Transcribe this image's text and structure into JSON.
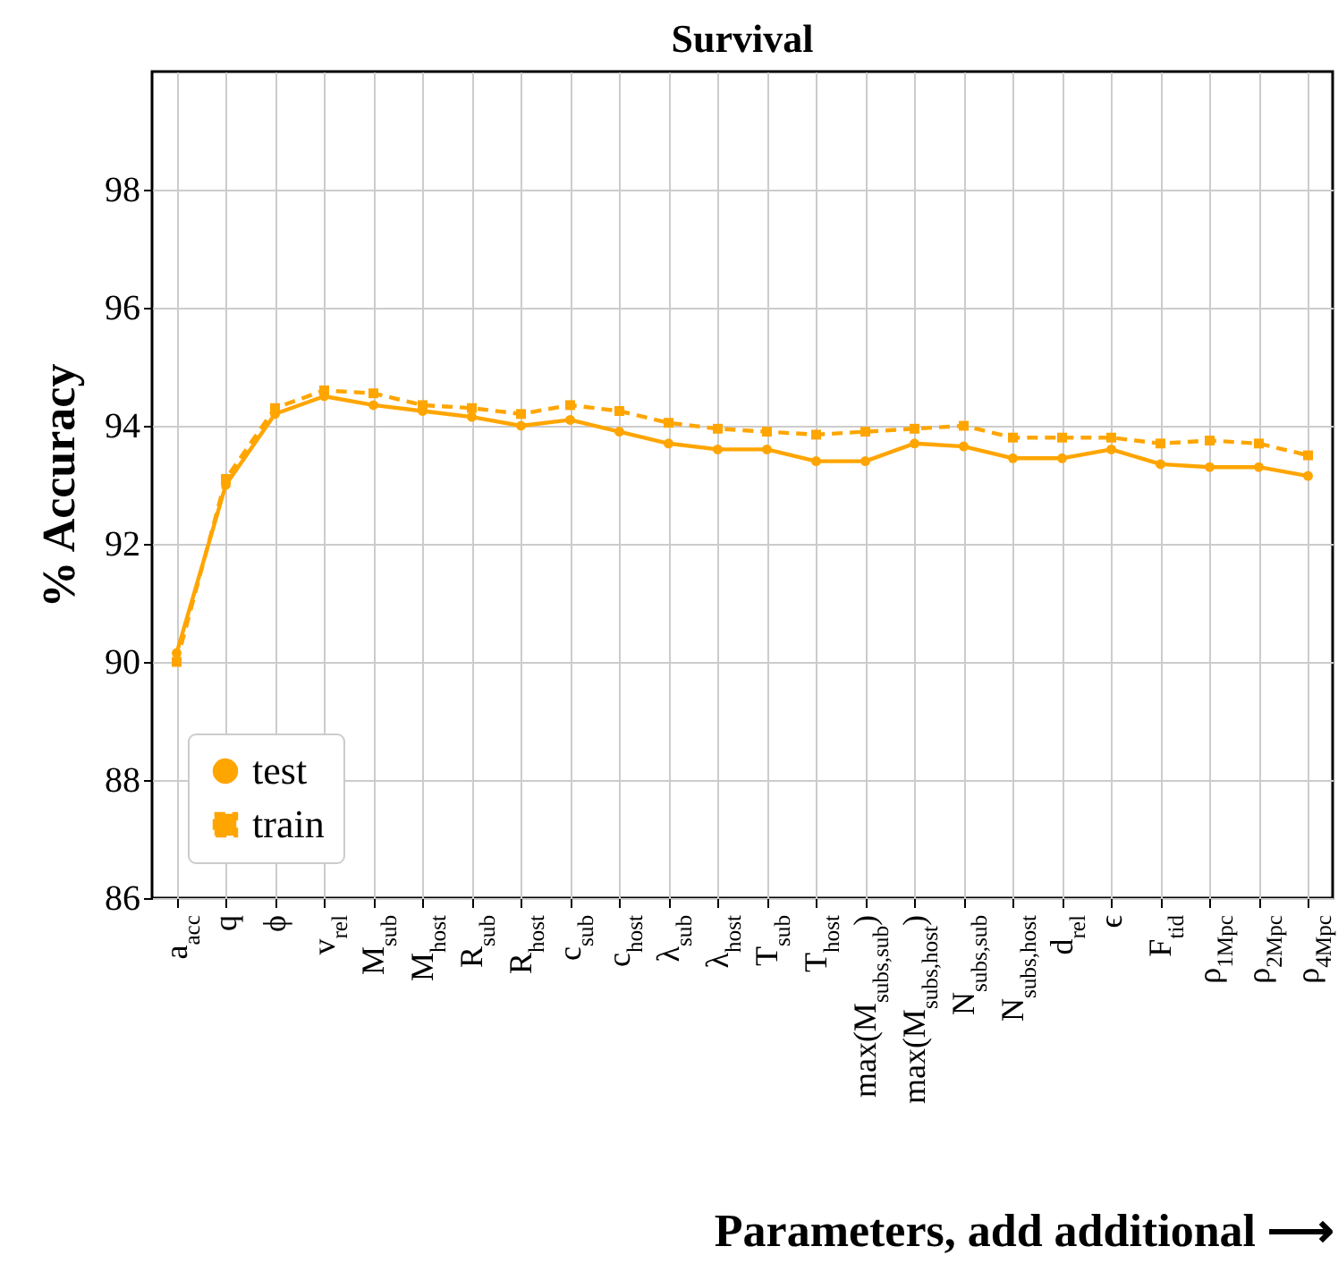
{
  "chart_data": {
    "type": "line",
    "title": "Survival",
    "xlabel": "Parameters, add additional ⟶",
    "ylabel": "% Accuracy",
    "categories": [
      "a$_{acc}$",
      "q",
      "ϕ",
      "v$_{rel}$",
      "M$_{sub}$",
      "M$_{host}$",
      "R$_{sub}$",
      "R$_{host}$",
      "c$_{sub}$",
      "c$_{host}$",
      "λ$_{sub}$",
      "λ$_{host}$",
      "T$_{sub}$",
      "T$_{host}$",
      "max(M$_{subs,sub}$)",
      "max(M$_{subs,host}$)",
      "N$_{subs,sub}$",
      "N$_{subs,host}$",
      "d$_{rel}$",
      "ϵ",
      "F$_{tid}$",
      "ρ$_{1Mpc}$",
      "ρ$_{2Mpc}$",
      "ρ$_{4Mpc}$"
    ],
    "series": [
      {
        "name": "test",
        "color": "#ffa500",
        "marker": "circle",
        "line_style": "solid",
        "values": [
          90.15,
          93.0,
          94.2,
          94.5,
          94.35,
          94.25,
          94.15,
          94.0,
          94.1,
          93.9,
          93.7,
          93.6,
          93.6,
          93.4,
          93.4,
          93.7,
          93.65,
          93.45,
          93.45,
          93.6,
          93.35,
          93.3,
          93.3,
          93.15
        ]
      },
      {
        "name": "train",
        "color": "#ffa500",
        "marker": "square",
        "line_style": "dashed",
        "values": [
          90.0,
          93.1,
          94.3,
          94.6,
          94.55,
          94.35,
          94.3,
          94.2,
          94.35,
          94.25,
          94.05,
          93.95,
          93.9,
          93.85,
          93.9,
          93.95,
          94.0,
          93.8,
          93.8,
          93.8,
          93.7,
          93.75,
          93.7,
          93.5
        ]
      }
    ],
    "ylim": [
      86,
      100
    ],
    "yticks": [
      86,
      88,
      90,
      92,
      94,
      96,
      98
    ],
    "grid": true,
    "legend": "bottom left"
  }
}
